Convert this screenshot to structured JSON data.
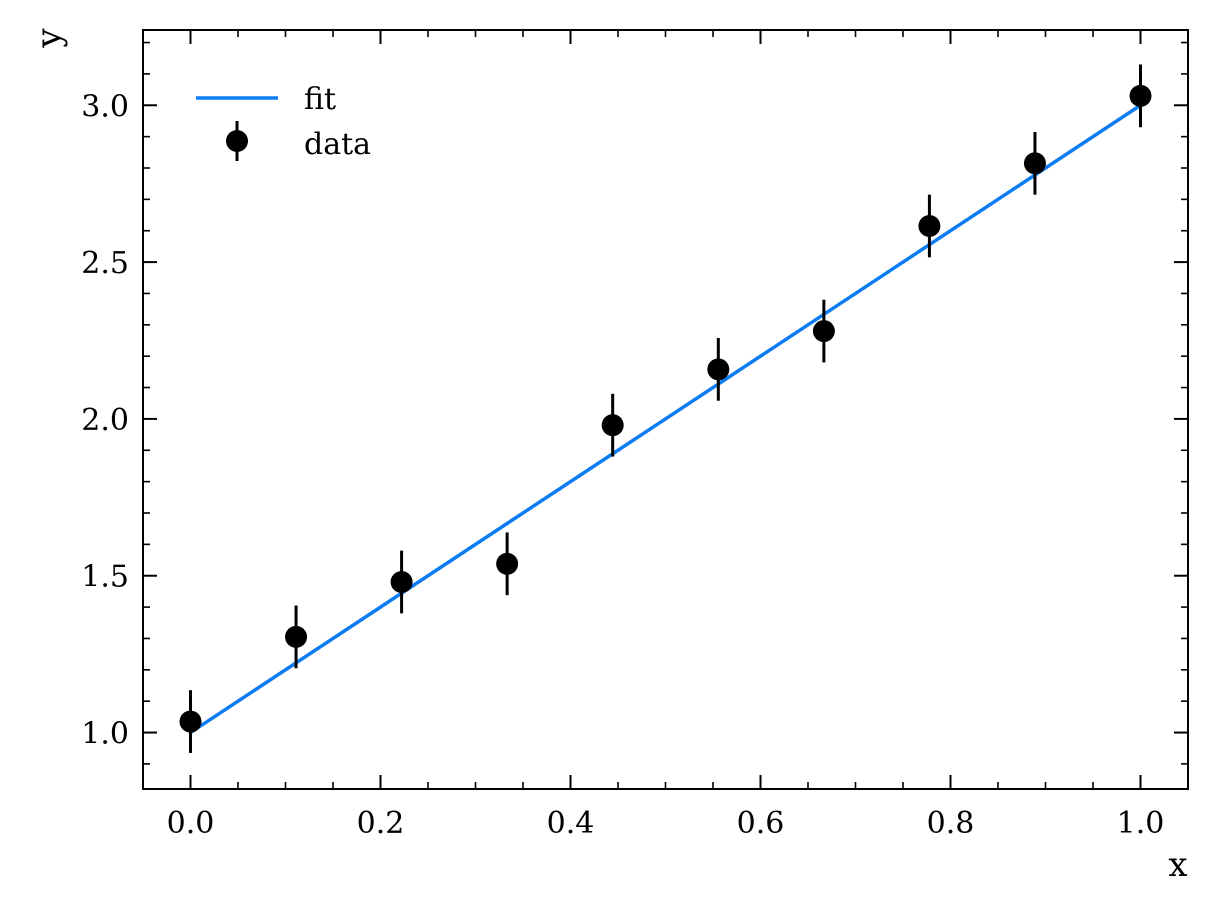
{
  "chart_data": {
    "type": "scatter",
    "xlabel": "x",
    "ylabel": "y",
    "xlim": [
      -0.05,
      1.05
    ],
    "ylim": [
      0.82,
      3.24
    ],
    "xticks": [
      0.0,
      0.2,
      0.4,
      0.6,
      0.8,
      1.0
    ],
    "xtick_labels": [
      "0.0",
      "0.2",
      "0.4",
      "0.6",
      "0.8",
      "1.0"
    ],
    "yticks": [
      1.0,
      1.5,
      2.0,
      2.5,
      3.0
    ],
    "ytick_labels": [
      "1.0",
      "1.5",
      "2.0",
      "2.5",
      "3.0"
    ],
    "grid": false,
    "legend_position": "top-left",
    "series": [
      {
        "name": "fit",
        "kind": "line",
        "color": "#0c7cf2",
        "x": [
          0.0,
          1.0
        ],
        "y": [
          1.0,
          3.0
        ]
      },
      {
        "name": "data",
        "kind": "errorbar",
        "color": "#000000",
        "x": [
          0.0,
          0.1111,
          0.2222,
          0.3333,
          0.4444,
          0.5556,
          0.6667,
          0.7778,
          0.8889,
          1.0
        ],
        "y": [
          1.035,
          1.305,
          1.48,
          1.538,
          1.98,
          2.158,
          2.28,
          2.615,
          2.815,
          3.03
        ],
        "yerr": [
          0.1,
          0.1,
          0.1,
          0.1,
          0.1,
          0.1,
          0.1,
          0.1,
          0.1,
          0.1
        ]
      }
    ]
  }
}
